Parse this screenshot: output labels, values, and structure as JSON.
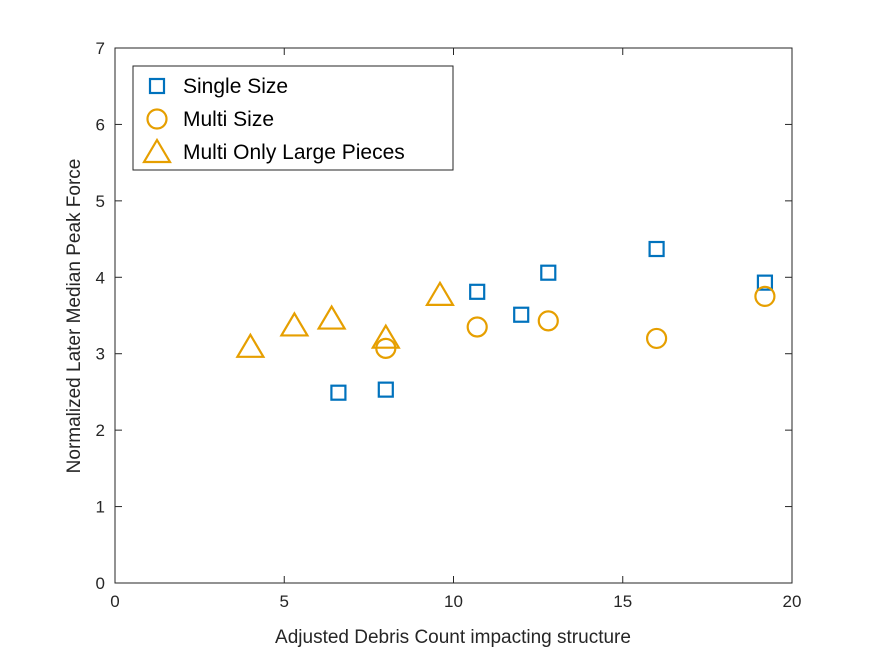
{
  "chart_data": {
    "type": "scatter",
    "xlabel": "Adjusted Debris Count impacting structure",
    "ylabel": "Normalized Later Median Peak Force",
    "xlim": [
      0,
      20
    ],
    "ylim": [
      0,
      7
    ],
    "xticks": [
      0,
      5,
      10,
      15,
      20
    ],
    "yticks": [
      0,
      1,
      2,
      3,
      4,
      5,
      6,
      7
    ],
    "grid": false,
    "legend_position": "top-left",
    "series": [
      {
        "name": "Single Size",
        "marker": "square",
        "color": "#0072BD",
        "points": [
          {
            "x": 6.6,
            "y": 2.49
          },
          {
            "x": 8.0,
            "y": 2.53
          },
          {
            "x": 10.7,
            "y": 3.81
          },
          {
            "x": 12.0,
            "y": 3.51
          },
          {
            "x": 12.8,
            "y": 4.06
          },
          {
            "x": 16.0,
            "y": 4.37
          },
          {
            "x": 19.2,
            "y": 3.93
          }
        ]
      },
      {
        "name": "Multi Size",
        "marker": "circle",
        "color": "#E69F00",
        "points": [
          {
            "x": 8.0,
            "y": 3.07
          },
          {
            "x": 10.7,
            "y": 3.35
          },
          {
            "x": 12.8,
            "y": 3.43
          },
          {
            "x": 16.0,
            "y": 3.2
          },
          {
            "x": 19.2,
            "y": 3.75
          }
        ]
      },
      {
        "name": "Multi Only Large Pieces",
        "marker": "triangle",
        "color": "#E69F00",
        "points": [
          {
            "x": 4.0,
            "y": 3.09
          },
          {
            "x": 5.3,
            "y": 3.37
          },
          {
            "x": 6.4,
            "y": 3.46
          },
          {
            "x": 8.0,
            "y": 3.21
          },
          {
            "x": 9.6,
            "y": 3.77
          }
        ]
      }
    ]
  }
}
